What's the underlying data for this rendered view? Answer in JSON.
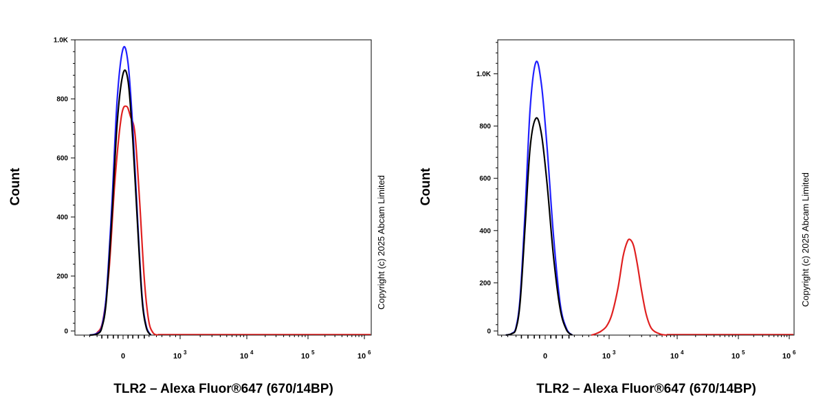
{
  "colors": {
    "background": "#ffffff",
    "axis": "#000000",
    "series_blue": "#1f1fff",
    "series_black": "#000000",
    "series_red": "#e02020"
  },
  "chart_data": [
    {
      "type": "line",
      "panel": "left",
      "xlabel": "TLR2 – Alexa Fluor®647 (670/14BP)",
      "ylabel": "Count",
      "x_scale": "biexponential",
      "x_ticks": [
        "0",
        "10^3",
        "10^4",
        "10^5",
        "10^6"
      ],
      "y_ticks": [
        "0",
        "200",
        "400",
        "600",
        "800",
        "1.0K"
      ],
      "ylim": [
        0,
        1000
      ],
      "watermark": "Copyright (c) 2025 Abcam Limited",
      "grid": false,
      "series": [
        {
          "color": "#1f1fff",
          "points": [
            [
              -300,
              0
            ],
            [
              -200,
              6
            ],
            [
              -150,
              30
            ],
            [
              -110,
              140
            ],
            [
              -70,
              440
            ],
            [
              -35,
              800
            ],
            [
              0,
              970
            ],
            [
              30,
              920
            ],
            [
              60,
              700
            ],
            [
              95,
              380
            ],
            [
              130,
              130
            ],
            [
              170,
              30
            ],
            [
              220,
              0
            ]
          ]
        },
        {
          "color": "#000000",
          "points": [
            [
              -300,
              0
            ],
            [
              -200,
              4
            ],
            [
              -150,
              25
            ],
            [
              -110,
              120
            ],
            [
              -70,
              400
            ],
            [
              -35,
              720
            ],
            [
              0,
              885
            ],
            [
              30,
              860
            ],
            [
              60,
              660
            ],
            [
              95,
              360
            ],
            [
              130,
              120
            ],
            [
              170,
              25
            ],
            [
              220,
              0
            ]
          ]
        },
        {
          "color": "#e02020",
          "points": [
            [
              -280,
              0
            ],
            [
              -200,
              8
            ],
            [
              -140,
              50
            ],
            [
              -90,
              220
            ],
            [
              -50,
              520
            ],
            [
              -10,
              740
            ],
            [
              20,
              775
            ],
            [
              45,
              740
            ],
            [
              75,
              680
            ],
            [
              110,
              450
            ],
            [
              150,
              190
            ],
            [
              195,
              50
            ],
            [
              250,
              8
            ],
            [
              320,
              0
            ]
          ]
        }
      ]
    },
    {
      "type": "line",
      "panel": "right",
      "xlabel": "TLR2 – Alexa Fluor®647 (670/14BP)",
      "ylabel": "Count",
      "x_scale": "biexponential",
      "x_ticks": [
        "0",
        "10^3",
        "10^4",
        "10^5",
        "10^6"
      ],
      "y_ticks": [
        "0",
        "200",
        "400",
        "600",
        "800",
        "1.0K"
      ],
      "ylim": [
        0,
        1130
      ],
      "watermark": "Copyright (c) 2025 Abcam Limited",
      "grid": false,
      "series": [
        {
          "color": "#1f1fff",
          "points": [
            [
              -330,
              0
            ],
            [
              -250,
              6
            ],
            [
              -200,
              30
            ],
            [
              -160,
              150
            ],
            [
              -120,
              480
            ],
            [
              -85,
              870
            ],
            [
              -50,
              1045
            ],
            [
              -20,
              960
            ],
            [
              10,
              720
            ],
            [
              45,
              380
            ],
            [
              85,
              120
            ],
            [
              130,
              25
            ],
            [
              180,
              0
            ]
          ]
        },
        {
          "color": "#000000",
          "points": [
            [
              -330,
              0
            ],
            [
              -250,
              5
            ],
            [
              -200,
              25
            ],
            [
              -160,
              130
            ],
            [
              -120,
              420
            ],
            [
              -85,
              720
            ],
            [
              -50,
              830
            ],
            [
              -20,
              770
            ],
            [
              10,
              580
            ],
            [
              45,
              300
            ],
            [
              85,
              100
            ],
            [
              130,
              20
            ],
            [
              180,
              0
            ]
          ]
        },
        {
          "color": "#e02020",
          "points": [
            [
              450,
              0
            ],
            [
              550,
              5
            ],
            [
              700,
              15
            ],
            [
              900,
              35
            ],
            [
              1100,
              80
            ],
            [
              1350,
              180
            ],
            [
              1600,
              300
            ],
            [
              1850,
              358
            ],
            [
              2050,
              365
            ],
            [
              2300,
              340
            ],
            [
              2600,
              270
            ],
            [
              3000,
              170
            ],
            [
              3500,
              80
            ],
            [
              4200,
              25
            ],
            [
              5500,
              5
            ],
            [
              7000,
              0
            ]
          ]
        }
      ]
    }
  ]
}
